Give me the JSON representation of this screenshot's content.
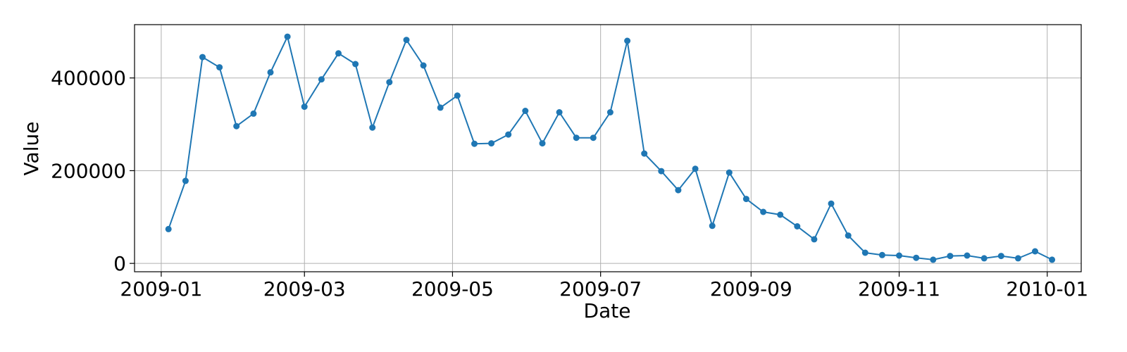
{
  "chart_data": {
    "type": "line",
    "title": "",
    "xlabel": "Date",
    "ylabel": "Value",
    "grid": true,
    "legend": "none",
    "line_color": "#1f77b4",
    "x_type": "date",
    "xlim": [
      "2008-12-21",
      "2010-01-15"
    ],
    "ylim": [
      -18000,
      515000
    ],
    "x_ticks": [
      "2009-01-01",
      "2009-03-01",
      "2009-05-01",
      "2009-07-01",
      "2009-09-01",
      "2009-11-01",
      "2010-01-01"
    ],
    "x_tick_labels": [
      "2009-01",
      "2009-03",
      "2009-05",
      "2009-07",
      "2009-09",
      "2009-11",
      "2010-01"
    ],
    "y_ticks": [
      0,
      200000,
      400000
    ],
    "y_tick_labels": [
      "0",
      "200000",
      "400000"
    ],
    "series": [
      {
        "x": [
          "2009-01-04",
          "2009-01-11",
          "2009-01-18",
          "2009-01-25",
          "2009-02-01",
          "2009-02-08",
          "2009-02-15",
          "2009-02-22",
          "2009-03-01",
          "2009-03-08",
          "2009-03-15",
          "2009-03-22",
          "2009-03-29",
          "2009-04-05",
          "2009-04-12",
          "2009-04-19",
          "2009-04-26",
          "2009-05-03",
          "2009-05-10",
          "2009-05-17",
          "2009-05-24",
          "2009-05-31",
          "2009-06-07",
          "2009-06-14",
          "2009-06-21",
          "2009-06-28",
          "2009-07-05",
          "2009-07-12",
          "2009-07-19",
          "2009-07-26",
          "2009-08-02",
          "2009-08-09",
          "2009-08-16",
          "2009-08-23",
          "2009-08-30",
          "2009-09-06",
          "2009-09-13",
          "2009-09-20",
          "2009-09-27",
          "2009-10-04",
          "2009-10-11",
          "2009-10-18",
          "2009-10-25",
          "2009-11-01",
          "2009-11-08",
          "2009-11-15",
          "2009-11-22",
          "2009-11-29",
          "2009-12-06",
          "2009-12-13",
          "2009-12-20",
          "2009-12-27",
          "2010-01-03"
        ],
        "values": [
          74000,
          178000,
          445000,
          423000,
          296000,
          323000,
          412000,
          489000,
          338000,
          397000,
          453000,
          430000,
          293000,
          391000,
          482000,
          427000,
          336000,
          362000,
          258000,
          259000,
          278000,
          329000,
          259000,
          326000,
          271000,
          271000,
          326000,
          480000,
          237000,
          199000,
          158000,
          204000,
          81000,
          196000,
          139000,
          111000,
          105000,
          80000,
          52000,
          129000,
          60000,
          23000,
          18000,
          17000,
          12000,
          8000,
          16000,
          17000,
          11000,
          16000,
          11000,
          26000,
          8000
        ]
      }
    ]
  }
}
